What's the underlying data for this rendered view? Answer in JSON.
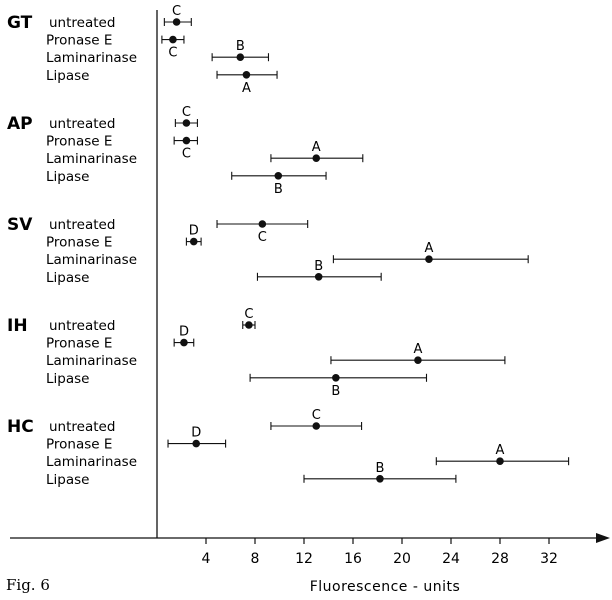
{
  "figure_label": "Fig. 6",
  "chart_data": {
    "type": "scatter",
    "xlabel": "Fluorescence - units",
    "xlim": [
      0,
      35
    ],
    "xticks": [
      4,
      8,
      12,
      16,
      20,
      24,
      28,
      32
    ],
    "tick_labels": [
      "4",
      "8",
      "12",
      "16",
      "20",
      "24",
      "28",
      "32"
    ],
    "groups": [
      {
        "name": "GT",
        "rows": [
          {
            "label": "untreated",
            "mean": 1.6,
            "low": 0.6,
            "high": 2.8,
            "letter": "C",
            "letter_pos": "above"
          },
          {
            "label": "Pronase E",
            "mean": 1.3,
            "low": 0.4,
            "high": 2.2,
            "letter": "C",
            "letter_pos": "below"
          },
          {
            "label": "Laminarinase",
            "mean": 6.8,
            "low": 4.5,
            "high": 9.1,
            "letter": "B",
            "letter_pos": "above"
          },
          {
            "label": "Lipase",
            "mean": 7.3,
            "low": 4.9,
            "high": 9.8,
            "letter": "A",
            "letter_pos": "below"
          }
        ]
      },
      {
        "name": "AP",
        "rows": [
          {
            "label": "untreated",
            "mean": 2.4,
            "low": 1.5,
            "high": 3.3,
            "letter": "C",
            "letter_pos": "above"
          },
          {
            "label": "Pronase E",
            "mean": 2.4,
            "low": 1.4,
            "high": 3.3,
            "letter": "C",
            "letter_pos": "below"
          },
          {
            "label": "Laminarinase",
            "mean": 13.0,
            "low": 9.3,
            "high": 16.8,
            "letter": "A",
            "letter_pos": "above"
          },
          {
            "label": "Lipase",
            "mean": 9.9,
            "low": 6.1,
            "high": 13.8,
            "letter": "B",
            "letter_pos": "below"
          }
        ]
      },
      {
        "name": "SV",
        "rows": [
          {
            "label": "untreated",
            "mean": 8.6,
            "low": 4.9,
            "high": 12.3,
            "letter": "C",
            "letter_pos": "below"
          },
          {
            "label": "Pronase E",
            "mean": 3.0,
            "low": 2.4,
            "high": 3.6,
            "letter": "D",
            "letter_pos": "above"
          },
          {
            "label": "Laminarinase",
            "mean": 22.2,
            "low": 14.4,
            "high": 30.3,
            "letter": "A",
            "letter_pos": "above"
          },
          {
            "label": "Lipase",
            "mean": 13.2,
            "low": 8.2,
            "high": 18.3,
            "letter": "B",
            "letter_pos": "above"
          }
        ]
      },
      {
        "name": "IH",
        "rows": [
          {
            "label": "untreated",
            "mean": 7.5,
            "low": 7.0,
            "high": 8.0,
            "letter": "C",
            "letter_pos": "above"
          },
          {
            "label": "Pronase E",
            "mean": 2.2,
            "low": 1.4,
            "high": 3.0,
            "letter": "D",
            "letter_pos": "above"
          },
          {
            "label": "Laminarinase",
            "mean": 21.3,
            "low": 14.2,
            "high": 28.4,
            "letter": "A",
            "letter_pos": "above"
          },
          {
            "label": "Lipase",
            "mean": 14.6,
            "low": 7.6,
            "high": 22.0,
            "letter": "B",
            "letter_pos": "below"
          }
        ]
      },
      {
        "name": "HC",
        "rows": [
          {
            "label": "untreated",
            "mean": 13.0,
            "low": 9.3,
            "high": 16.7,
            "letter": "C",
            "letter_pos": "above"
          },
          {
            "label": "Pronase E",
            "mean": 3.2,
            "low": 0.9,
            "high": 5.6,
            "letter": "D",
            "letter_pos": "above"
          },
          {
            "label": "Laminarinase",
            "mean": 28.0,
            "low": 22.8,
            "high": 33.6,
            "letter": "A",
            "letter_pos": "above"
          },
          {
            "label": "Lipase",
            "mean": 18.2,
            "low": 12.0,
            "high": 24.4,
            "letter": "B",
            "letter_pos": "above"
          }
        ]
      }
    ]
  }
}
